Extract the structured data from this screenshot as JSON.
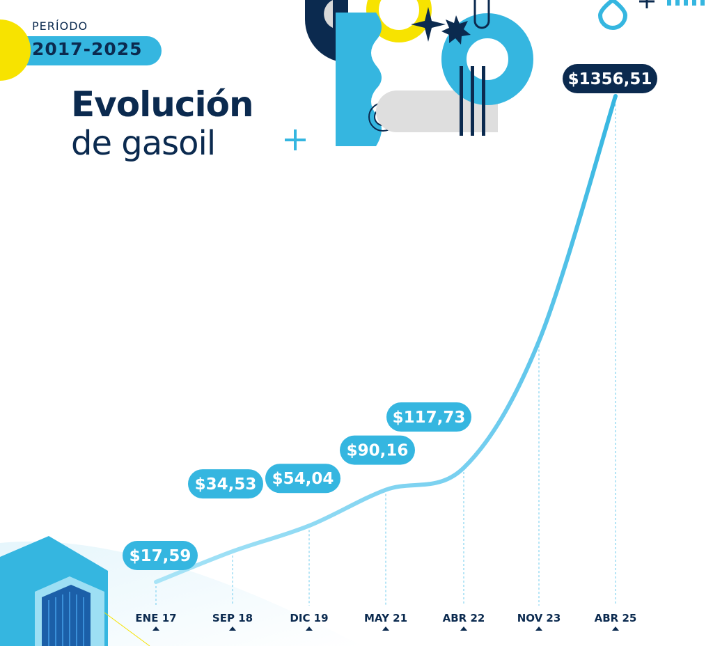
{
  "header": {
    "period_label": "PERÍODO",
    "period_value": "2017-2025",
    "title_line1": "Evolución",
    "title_line2": "de gasoil"
  },
  "colors": {
    "navy": "#0b2a4f",
    "accent": "#35b6e0",
    "yellow": "#f7e300",
    "line_light": "#a8e4f7"
  },
  "chart_data": {
    "type": "line",
    "categories": [
      "ENE 17",
      "SEP 18",
      "DIC 19",
      "MAY 21",
      "ABR 22",
      "NOV 23",
      "ABR 25"
    ],
    "x": [
      "ENE 17",
      "SEP 18",
      "DIC 19",
      "MAY 21",
      "ABR 22",
      "NOV 23",
      "ABR 25"
    ],
    "values": [
      17.59,
      34.53,
      54.04,
      90.16,
      117.73,
      366,
      1356.51
    ],
    "data_labels": [
      "$17,59",
      "$34,53",
      "$54,04",
      "$90,16",
      "$117,73",
      "",
      "$1356,51"
    ],
    "title": "Evolución de gasoil",
    "subtitle": "2017-2025",
    "grid": false,
    "scale": "non-linear (illustrative)"
  }
}
